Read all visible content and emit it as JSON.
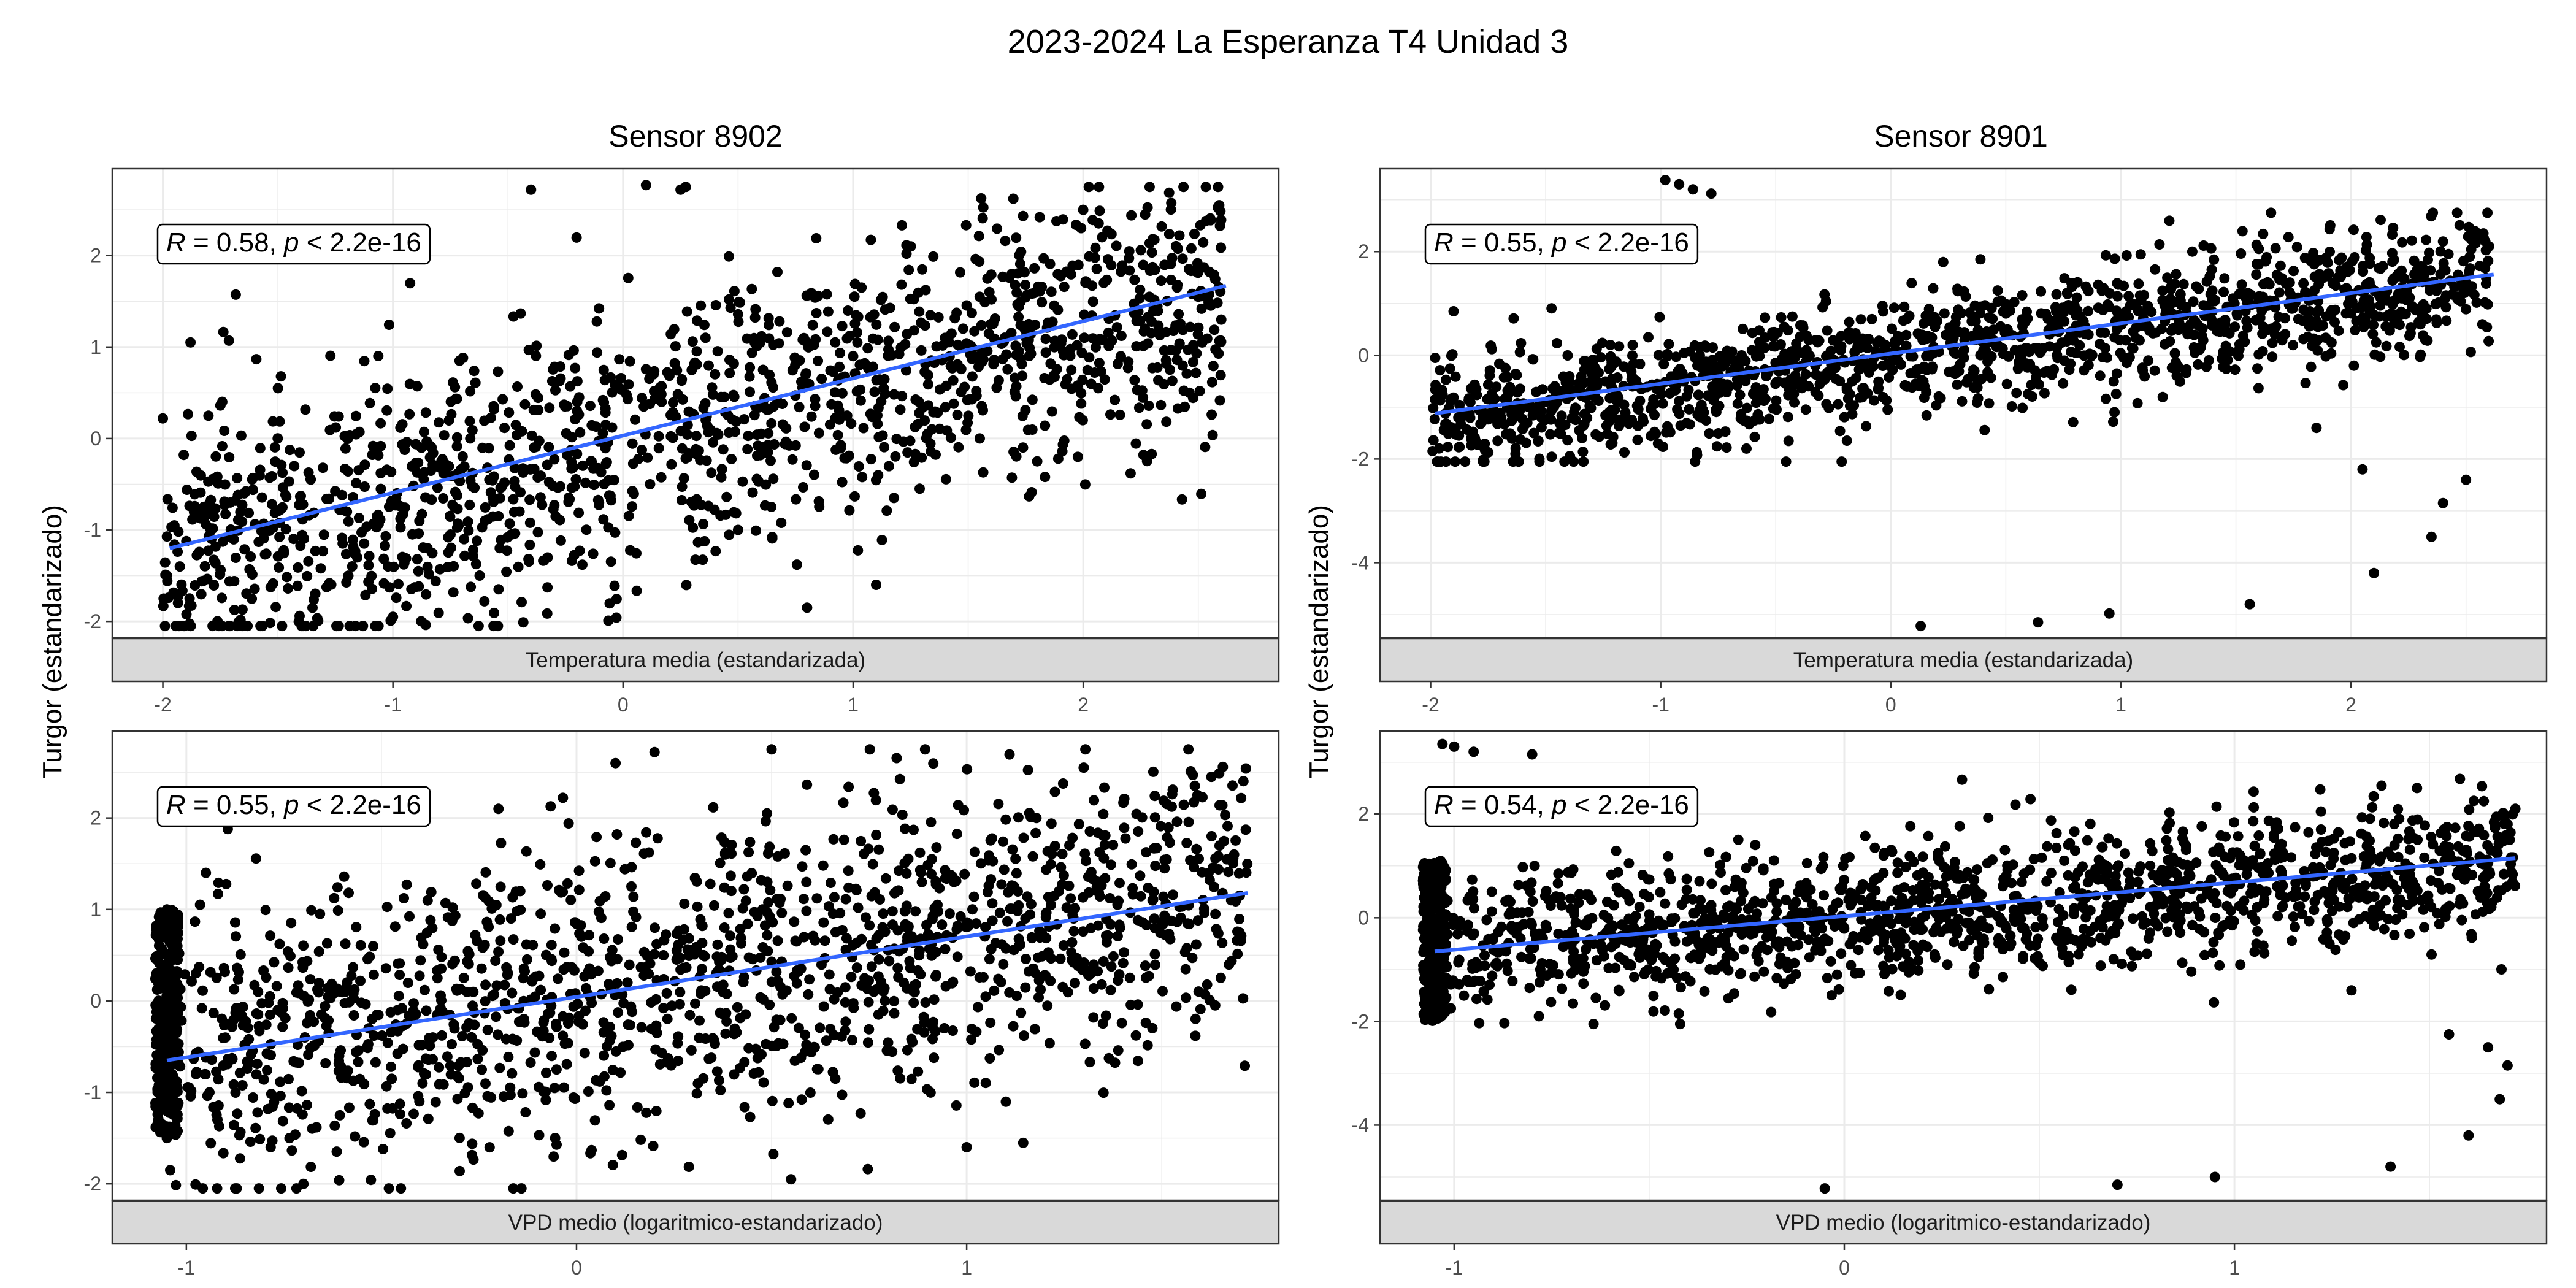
{
  "figure": {
    "title": "2023-2024 La Esperanza T4 Unidad 3",
    "y_label": "Turgor (estandarizado)",
    "column_titles": [
      "Sensor 8902",
      "Sensor 8901"
    ]
  },
  "colors": {
    "points": "#000000",
    "fit_line": "#3366FF",
    "panel_border": "#333333",
    "grid": "#ebebeb",
    "strip_fill": "#d9d9d9"
  },
  "chart_data": [
    {
      "type": "scatter",
      "sensor": "Sensor 8902",
      "xlabel": "Temperatura media (estandarizada)",
      "xlim": [
        -2.22,
        2.85
      ],
      "ylim": [
        -2.18,
        2.95
      ],
      "xticks": [
        -2,
        -1,
        0,
        1,
        2
      ],
      "yticks": [
        -2,
        -1,
        0,
        1,
        2
      ],
      "fit_line": {
        "x": [
          -1.97,
          2.62
        ],
        "y": [
          -1.2,
          1.67
        ]
      },
      "annotation": {
        "r": "R",
        "r_value": " = 0.58, ",
        "p": "p",
        "p_value": " < 2.2e-16"
      },
      "points_sample": [
        {
          "x": -1.95,
          "y": -0.95
        },
        {
          "x": -1.88,
          "y": 1.05
        },
        {
          "x": -1.5,
          "y": 0.55
        },
        {
          "x": -1.2,
          "y": -0.8
        },
        {
          "x": -1.0,
          "y": -1.95
        },
        {
          "x": -0.85,
          "y": -1.2
        },
        {
          "x": -0.75,
          "y": -1.05
        },
        {
          "x": -0.6,
          "y": -0.9
        },
        {
          "x": -0.4,
          "y": 2.72
        },
        {
          "x": -0.2,
          "y": 0.3
        },
        {
          "x": 0.1,
          "y": 2.77
        },
        {
          "x": 0.25,
          "y": 2.72
        },
        {
          "x": 0.5,
          "y": -1.0
        },
        {
          "x": 0.8,
          "y": -1.85
        },
        {
          "x": 1.0,
          "y": 0.9
        },
        {
          "x": 1.1,
          "y": -1.6
        },
        {
          "x": 1.4,
          "y": 1.1
        },
        {
          "x": 1.8,
          "y": -0.25
        },
        {
          "x": 2.0,
          "y": 2.5
        },
        {
          "x": 2.5,
          "y": 1.55
        },
        {
          "x": 2.6,
          "y": 1.3
        }
      ],
      "cloud": {
        "x_range": [
          -2.0,
          2.6
        ],
        "slope": 0.62,
        "intercept": -0.05,
        "noise": 0.75,
        "n": 1500,
        "seed": 11
      }
    },
    {
      "type": "scatter",
      "sensor": "Sensor 8901",
      "xlabel": "Temperatura media (estandarizada)",
      "xlim": [
        -2.22,
        2.85
      ],
      "ylim": [
        -5.45,
        3.6
      ],
      "xticks": [
        -2,
        -1,
        0,
        1,
        2
      ],
      "yticks": [
        -4,
        -2,
        0,
        2
      ],
      "fit_line": {
        "x": [
          -1.98,
          2.62
        ],
        "y": [
          -1.12,
          1.56
        ]
      },
      "annotation": {
        "r": "R",
        "r_value": " = 0.55, ",
        "p": "p",
        "p_value": " < 2.2e-16"
      },
      "points_sample": [
        {
          "x": -1.98,
          "y": -0.05
        },
        {
          "x": -1.9,
          "y": 0.85
        },
        {
          "x": -1.5,
          "y": -0.9
        },
        {
          "x": -0.98,
          "y": 3.38
        },
        {
          "x": -0.92,
          "y": 3.3
        },
        {
          "x": -0.86,
          "y": 3.2
        },
        {
          "x": -0.78,
          "y": 3.12
        },
        {
          "x": 0.13,
          "y": -5.22
        },
        {
          "x": 0.64,
          "y": -5.15
        },
        {
          "x": 0.95,
          "y": -4.98
        },
        {
          "x": 1.56,
          "y": -4.8
        },
        {
          "x": 1.85,
          "y": -1.4
        },
        {
          "x": 2.05,
          "y": -2.2
        },
        {
          "x": 2.1,
          "y": -4.2
        },
        {
          "x": 2.35,
          "y": -3.5
        },
        {
          "x": 2.4,
          "y": -2.85
        },
        {
          "x": 2.5,
          "y": -2.4
        },
        {
          "x": 2.6,
          "y": 2.1
        }
      ],
      "cloud": {
        "x_range": [
          -2.0,
          2.6
        ],
        "slope": 0.58,
        "intercept": -0.05,
        "noise": 0.6,
        "n": 1500,
        "seed": 23
      }
    },
    {
      "type": "scatter",
      "sensor": "Sensor 8902",
      "xlabel": "VPD medio (logaritmico-estandarizado)",
      "xlim": [
        -1.19,
        1.8
      ],
      "ylim": [
        -2.18,
        2.95
      ],
      "xticks": [
        -1,
        0,
        1
      ],
      "yticks": [
        -2,
        -1,
        0,
        1,
        2
      ],
      "fit_line": {
        "x": [
          -1.05,
          1.72
        ],
        "y": [
          -0.65,
          1.18
        ]
      },
      "annotation": {
        "r": "R",
        "r_value": " = 0.55, ",
        "p": "p",
        "p_value": " < 2.2e-16"
      },
      "points_sample": [
        {
          "x": -1.05,
          "y": -1.5
        },
        {
          "x": -1.05,
          "y": 1.0
        },
        {
          "x": -0.95,
          "y": 1.4
        },
        {
          "x": -0.7,
          "y": -2.0
        },
        {
          "x": -0.45,
          "y": -2.05
        },
        {
          "x": -0.2,
          "y": 2.1
        },
        {
          "x": 0.1,
          "y": 2.6
        },
        {
          "x": 0.2,
          "y": 2.72
        },
        {
          "x": 0.5,
          "y": 2.75
        },
        {
          "x": 0.55,
          "y": -1.95
        },
        {
          "x": 1.0,
          "y": -1.6
        },
        {
          "x": 1.3,
          "y": 2.55
        },
        {
          "x": 1.7,
          "y": 1.15
        }
      ],
      "cloud": {
        "x_range": [
          -1.05,
          1.72
        ],
        "slope": 0.66,
        "intercept": 0.05,
        "noise": 0.8,
        "n": 1500,
        "seed": 37
      },
      "cluster": {
        "x_range": [
          -1.08,
          -1.02
        ],
        "y_range": [
          -1.5,
          1.0
        ],
        "n": 300
      }
    },
    {
      "type": "scatter",
      "sensor": "Sensor 8901",
      "xlabel": "VPD medio (logaritmico-estandarizado)",
      "xlim": [
        -1.19,
        1.8
      ],
      "ylim": [
        -5.45,
        3.6
      ],
      "xticks": [
        -1,
        0,
        1
      ],
      "yticks": [
        -4,
        -2,
        0,
        2
      ],
      "fit_line": {
        "x": [
          -1.05,
          1.72
        ],
        "y": [
          -0.65,
          1.15
        ]
      },
      "annotation": {
        "r": "R",
        "r_value": " = 0.54, ",
        "p": "p",
        "p_value": " < 2.2e-16"
      },
      "points_sample": [
        {
          "x": -1.03,
          "y": 3.35
        },
        {
          "x": -1.0,
          "y": 3.3
        },
        {
          "x": -0.95,
          "y": 3.2
        },
        {
          "x": -0.8,
          "y": 3.15
        },
        {
          "x": -0.05,
          "y": -5.22
        },
        {
          "x": 0.7,
          "y": -5.15
        },
        {
          "x": 0.95,
          "y": -5.0
        },
        {
          "x": 1.4,
          "y": -4.8
        },
        {
          "x": 1.3,
          "y": -1.4
        },
        {
          "x": 1.55,
          "y": -2.25
        },
        {
          "x": 1.6,
          "y": -4.2
        },
        {
          "x": 1.68,
          "y": -3.5
        },
        {
          "x": 1.7,
          "y": -2.85
        },
        {
          "x": 1.65,
          "y": -2.5
        },
        {
          "x": 1.72,
          "y": 2.1
        }
      ],
      "cloud": {
        "x_range": [
          -1.05,
          1.72
        ],
        "slope": 0.6,
        "intercept": 0.0,
        "noise": 0.65,
        "n": 1500,
        "seed": 51
      },
      "cluster": {
        "x_range": [
          -1.08,
          -1.02
        ],
        "y_range": [
          -2.0,
          1.1
        ],
        "n": 300
      }
    }
  ]
}
